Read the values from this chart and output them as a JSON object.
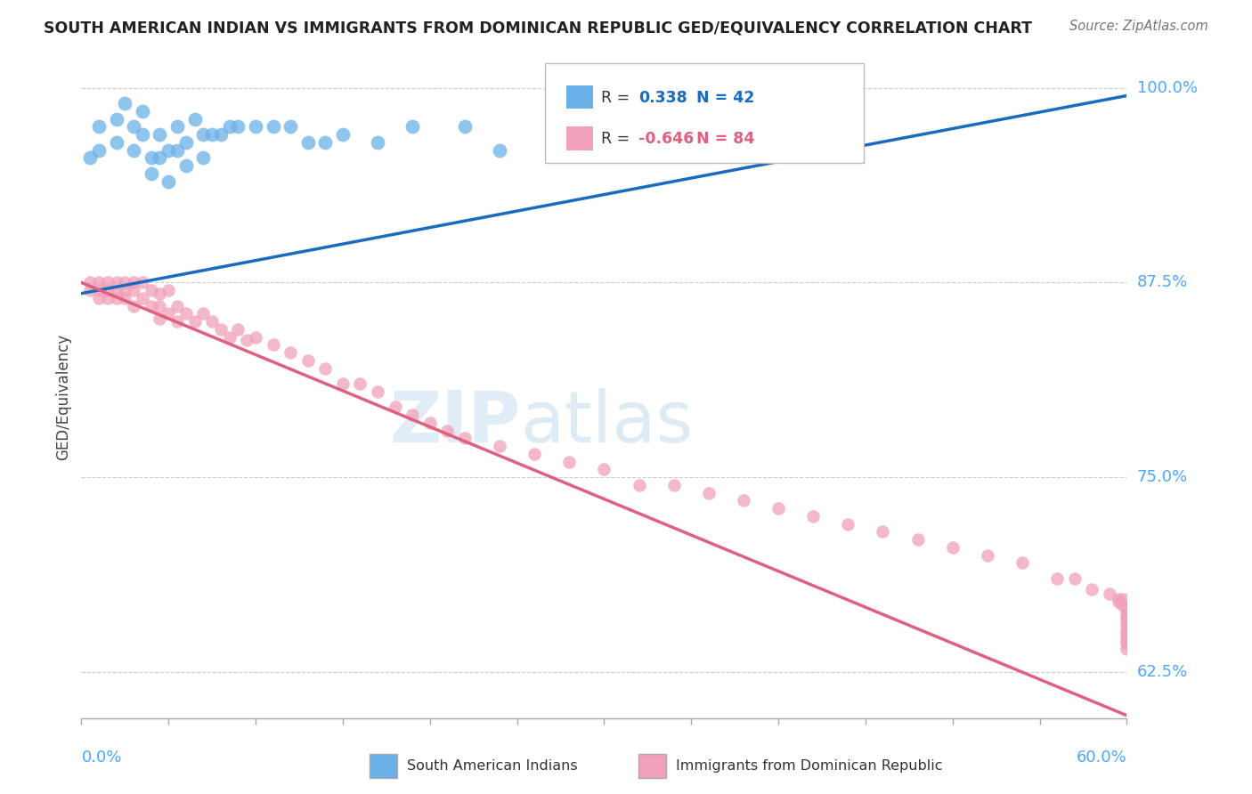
{
  "title": "SOUTH AMERICAN INDIAN VS IMMIGRANTS FROM DOMINICAN REPUBLIC GED/EQUIVALENCY CORRELATION CHART",
  "source": "Source: ZipAtlas.com",
  "ylabel_label": "GED/Equivalency",
  "legend_v1": "0.338",
  "legend_n1": "N = 42",
  "legend_v2": "-0.646",
  "legend_n2": "N = 84",
  "legend_label1": "South American Indians",
  "legend_label2": "Immigrants from Dominican Republic",
  "color_blue": "#6ab0e8",
  "color_pink": "#f0a0b8",
  "color_blue_line": "#1a6bbf",
  "color_pink_line": "#e06080",
  "color_title": "#222222",
  "color_source": "#777777",
  "color_axis_label": "#4da6ff",
  "xmin": 0.0,
  "xmax": 0.6,
  "ymin": 0.595,
  "ymax": 1.008,
  "ytick_positions": [
    0.625,
    0.75,
    0.875,
    1.0
  ],
  "ytick_labels": [
    "62.5%",
    "75.0%",
    "87.5%",
    "100.0%"
  ],
  "blue_points_x": [
    0.005,
    0.01,
    0.01,
    0.02,
    0.02,
    0.025,
    0.03,
    0.03,
    0.035,
    0.035,
    0.04,
    0.04,
    0.045,
    0.045,
    0.05,
    0.05,
    0.055,
    0.055,
    0.06,
    0.06,
    0.065,
    0.07,
    0.07,
    0.075,
    0.08,
    0.085,
    0.09,
    0.1,
    0.11,
    0.12,
    0.13,
    0.14,
    0.15,
    0.17,
    0.19,
    0.22,
    0.24,
    0.28,
    0.32,
    0.35,
    0.38,
    0.43
  ],
  "blue_points_y": [
    0.955,
    0.975,
    0.96,
    0.98,
    0.965,
    0.99,
    0.975,
    0.96,
    0.985,
    0.97,
    0.955,
    0.945,
    0.97,
    0.955,
    0.96,
    0.94,
    0.975,
    0.96,
    0.965,
    0.95,
    0.98,
    0.97,
    0.955,
    0.97,
    0.97,
    0.975,
    0.975,
    0.975,
    0.975,
    0.975,
    0.965,
    0.965,
    0.97,
    0.965,
    0.975,
    0.975,
    0.96,
    0.975,
    0.975,
    0.975,
    0.975,
    0.99
  ],
  "pink_points_x": [
    0.005,
    0.005,
    0.01,
    0.01,
    0.01,
    0.015,
    0.015,
    0.015,
    0.02,
    0.02,
    0.02,
    0.025,
    0.025,
    0.025,
    0.03,
    0.03,
    0.03,
    0.035,
    0.035,
    0.04,
    0.04,
    0.045,
    0.045,
    0.045,
    0.05,
    0.05,
    0.055,
    0.055,
    0.06,
    0.065,
    0.07,
    0.075,
    0.08,
    0.085,
    0.09,
    0.095,
    0.1,
    0.11,
    0.12,
    0.13,
    0.14,
    0.15,
    0.16,
    0.17,
    0.18,
    0.19,
    0.2,
    0.21,
    0.22,
    0.24,
    0.26,
    0.28,
    0.3,
    0.32,
    0.34,
    0.36,
    0.38,
    0.4,
    0.42,
    0.44,
    0.46,
    0.48,
    0.5,
    0.52,
    0.54,
    0.56,
    0.57,
    0.58,
    0.59,
    0.595,
    0.595,
    0.598,
    0.598,
    0.6,
    0.6,
    0.6,
    0.6,
    0.6,
    0.6,
    0.6,
    0.6,
    0.6,
    0.6,
    0.6
  ],
  "pink_points_y": [
    0.875,
    0.87,
    0.875,
    0.87,
    0.865,
    0.875,
    0.87,
    0.865,
    0.875,
    0.87,
    0.865,
    0.875,
    0.87,
    0.865,
    0.875,
    0.87,
    0.86,
    0.875,
    0.865,
    0.87,
    0.86,
    0.868,
    0.86,
    0.852,
    0.87,
    0.855,
    0.86,
    0.85,
    0.855,
    0.85,
    0.855,
    0.85,
    0.845,
    0.84,
    0.845,
    0.838,
    0.84,
    0.835,
    0.83,
    0.825,
    0.82,
    0.81,
    0.81,
    0.805,
    0.795,
    0.79,
    0.785,
    0.78,
    0.775,
    0.77,
    0.765,
    0.76,
    0.755,
    0.745,
    0.745,
    0.74,
    0.735,
    0.73,
    0.725,
    0.72,
    0.715,
    0.71,
    0.705,
    0.7,
    0.695,
    0.685,
    0.685,
    0.678,
    0.675,
    0.672,
    0.67,
    0.672,
    0.668,
    0.665,
    0.662,
    0.66,
    0.658,
    0.655,
    0.652,
    0.65,
    0.648,
    0.645,
    0.643,
    0.64
  ],
  "blue_line_x": [
    0.0,
    0.6
  ],
  "blue_line_y": [
    0.868,
    0.995
  ],
  "pink_line_x": [
    0.0,
    0.6
  ],
  "pink_line_y": [
    0.875,
    0.597
  ]
}
